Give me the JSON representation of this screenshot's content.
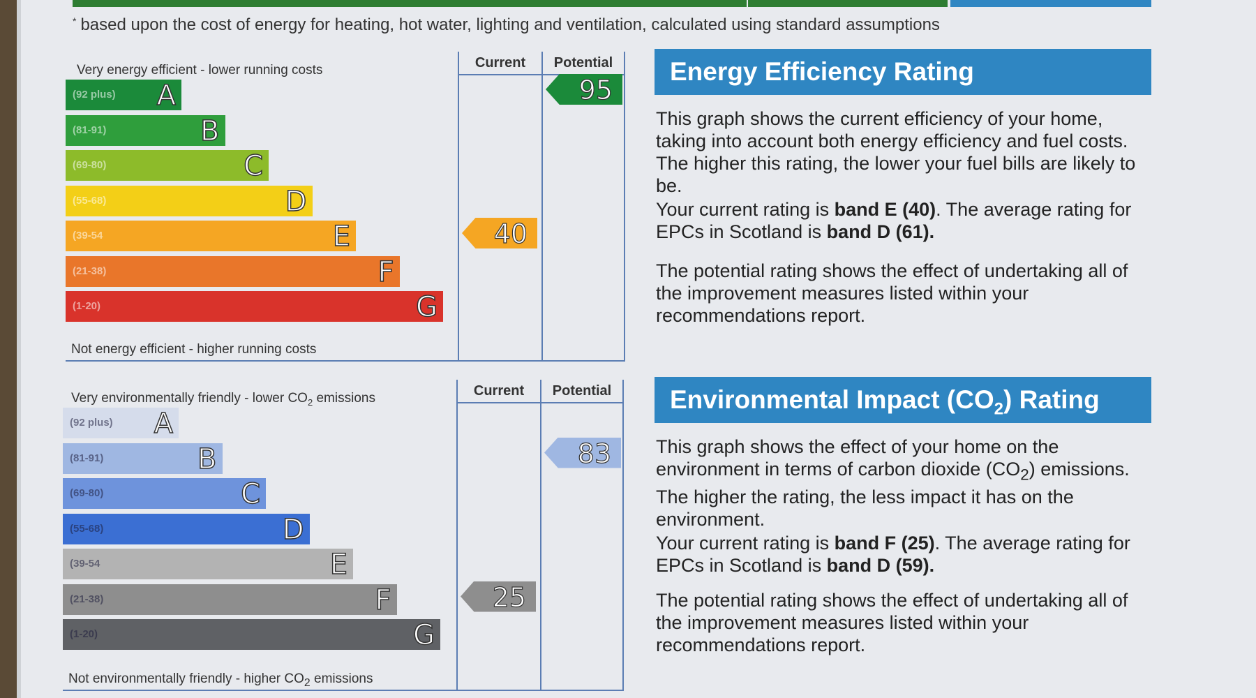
{
  "footnote": {
    "marker": "*",
    "text": "based upon the cost of energy for heating, hot water, lighting and ventilation, calculated using standard assumptions"
  },
  "colors": {
    "top_bar": [
      "#2e7d32",
      "#2e7d32",
      "#2f86c2"
    ],
    "panel_header": "#2f86c2",
    "chart_lines": "#5b7db3"
  },
  "energy": {
    "header": "Very energy efficient - lower running costs",
    "footer": "Not energy efficient - higher running costs",
    "col_current": "Current",
    "col_potential": "Potential",
    "bands": [
      {
        "letter": "A",
        "range": "(92 plus)",
        "color": "#1b8a3a"
      },
      {
        "letter": "B",
        "range": "(81-91)",
        "color": "#2f9e3c"
      },
      {
        "letter": "C",
        "range": "(69-80)",
        "color": "#8dbb2a"
      },
      {
        "letter": "D",
        "range": "(55-68)",
        "color": "#f3cf17"
      },
      {
        "letter": "E",
        "range": "(39-54",
        "color": "#f5a623"
      },
      {
        "letter": "F",
        "range": "(21-38)",
        "color": "#e9762a"
      },
      {
        "letter": "G",
        "range": "(1-20)",
        "color": "#d9332b"
      }
    ],
    "current": {
      "value": "40",
      "band": "E",
      "color": "#f5a623"
    },
    "potential": {
      "value": "95",
      "band": "A",
      "color": "#1b8a3a"
    }
  },
  "environment": {
    "header": "Very environmentally friendly - lower CO",
    "header_sub": "2",
    "header_tail": "emissions",
    "footer": "Not environmentally friendly - higher CO",
    "footer_sub": "2",
    "footer_tail": "emissions",
    "col_current": "Current",
    "col_potential": "Potential",
    "bands": [
      {
        "letter": "A",
        "range": "(92 plus)",
        "color": "#d5dceb"
      },
      {
        "letter": "B",
        "range": "(81-91)",
        "color": "#9fb7e2"
      },
      {
        "letter": "C",
        "range": "(69-80)",
        "color": "#6e93dc"
      },
      {
        "letter": "D",
        "range": "(55-68)",
        "color": "#3b6fd3"
      },
      {
        "letter": "E",
        "range": "(39-54",
        "color": "#b3b3b3"
      },
      {
        "letter": "F",
        "range": "(21-38)",
        "color": "#8e8e8e"
      },
      {
        "letter": "G",
        "range": "(1-20)",
        "color": "#5f6165"
      }
    ],
    "current": {
      "value": "25",
      "band": "F",
      "color": "#8e8e8e"
    },
    "potential": {
      "value": "83",
      "band": "B",
      "color": "#9fb7e2"
    }
  },
  "energy_panel": {
    "title": "Energy Efficiency Rating",
    "p1": "This graph shows the current efficiency of your home, taking into account both energy efficiency and fuel costs. The higher this rating, the lower your fuel bills are likely to be.",
    "p2_a": "Your current rating is ",
    "p2_b": "band E (40)",
    "p2_c": ". The average rating for EPCs in Scotland is ",
    "p2_d": "band D (61).",
    "p3": "The potential rating shows the effect of undertaking all of the improvement measures listed within your recommendations report."
  },
  "env_panel": {
    "title_a": "Environmental Impact (CO",
    "title_sub": "2",
    "title_b": ") Rating",
    "p1_a": "This graph shows the effect of your home on the environment in terms of carbon dioxide (CO",
    "p1_sub": "2",
    "p1_b": ") emissions. The higher the rating, the less impact it has on the environment.",
    "p2_a": "Your current rating is ",
    "p2_b": "band F (25)",
    "p2_c": ". The average rating for EPCs in Scotland is ",
    "p2_d": "band D (59).",
    "p3": "The potential rating shows the effect of undertaking all of the improvement measures listed within your recommendations report."
  }
}
